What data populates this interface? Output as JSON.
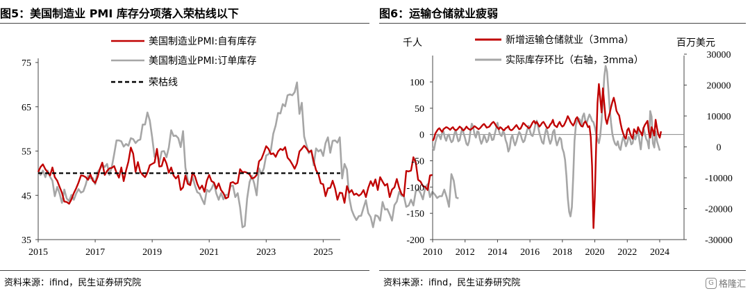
{
  "colors": {
    "red": "#c00000",
    "gray": "#a6a6a6",
    "black": "#000000"
  },
  "watermark": {
    "text": "格隆汇",
    "icon": "glh-logo-icon"
  },
  "left": {
    "title": "图5：美国制造业 PMI 库存分项落入荣枯线以下",
    "source": "资料来源：ifind，民生证券研究院",
    "chart_data": {
      "type": "line",
      "x_ticks": [
        "2015",
        "2017",
        "2019",
        "2021",
        "2023",
        "2025"
      ],
      "y_ticks": [
        "75",
        "65",
        "55",
        "45",
        "35"
      ],
      "ylim": [
        35,
        75
      ],
      "xlim": [
        2015.0,
        2025.6
      ],
      "threshold": {
        "name": "荣枯线",
        "value": 50,
        "style": "dashed"
      },
      "series": [
        {
          "name": "美国制造业PMI:自有库存",
          "color": "#c00000",
          "x_start": 2015.0,
          "step": 0.08333,
          "values": [
            50.3,
            51.4,
            52,
            50.9,
            50.2,
            49.5,
            51.3,
            49.1,
            48.3,
            46.9,
            45.6,
            43.6,
            43.5,
            43.1,
            44.1,
            45.5,
            46.6,
            47.9,
            49.5,
            49.4,
            49.1,
            48.5,
            49.7,
            48.3,
            47.8,
            49.1,
            51,
            52.4,
            49.6,
            50.5,
            51.1,
            51.2,
            51.6,
            50.1,
            49,
            51.3,
            48.2,
            50.6,
            52.6,
            55.8,
            54.4,
            50.3,
            52.5,
            50.3,
            49.6,
            49.1,
            50.1,
            51.8,
            52.1,
            52.4,
            55.5,
            51.5,
            51.6,
            53.5,
            52.2,
            50.1,
            51.3,
            49.5,
            48.8,
            49.5,
            46.2,
            46.8,
            49.5,
            47.6,
            47.3,
            50.1,
            49.3,
            47.6,
            46.4,
            47.2,
            45.8,
            48.3,
            49.6,
            48.2,
            47.9,
            46.5,
            47.7,
            46.2,
            45.5,
            44.3,
            44.6,
            47.8,
            48,
            47.6,
            47.8,
            50.9,
            50.2,
            50.3,
            50.1,
            49.7,
            48.8,
            49,
            49.6,
            52.7,
            53.2,
            54.6,
            56.1,
            55.5,
            54.3,
            54.5,
            53.7,
            54.9,
            55.5,
            55.2,
            55.9,
            53.5,
            52.9,
            52,
            51,
            52.2,
            54.9,
            55.5,
            56.2,
            55.6,
            54.8,
            55.1,
            52.7,
            50.7,
            49.8,
            47.7,
            47.5,
            44.8,
            46.6,
            46.7,
            48.3,
            46.6,
            44,
            45.6,
            45.5,
            43.3,
            47.1,
            45.6,
            46.2,
            45.1,
            45.4,
            44.9,
            45.3,
            46.2,
            44.6,
            46.7,
            48.2,
            47.1,
            48.6,
            46.2,
            49.1,
            48.1,
            47.2,
            47.6,
            44.6,
            46.3,
            46.8,
            48.7,
            46.7,
            45.3,
            44.8,
            50.5,
            50.4,
            50.6,
            53.6,
            52.4,
            48.5,
            48.1,
            47.1,
            46.9,
            46.2,
            49.5,
            49.6
          ]
        },
        {
          "name": "美国制造业PMI:订单库存",
          "color": "#a6a6a6",
          "x_start": 2015.0,
          "step": 0.08333,
          "values": [
            50.9,
            49.6,
            50.6,
            49.1,
            50.6,
            49.2,
            48.3,
            44.8,
            46.9,
            45.4,
            43.3,
            46.3,
            44.3,
            43.7,
            45.1,
            44,
            45.4,
            46.4,
            45.6,
            45.9,
            47.4,
            49.4,
            48.8,
            48.9,
            47.5,
            50.3,
            50.9,
            51.9,
            51.4,
            52.1,
            49.6,
            51.4,
            54.3,
            57.4,
            57.4,
            57.2,
            56,
            56.6,
            56.2,
            57.9,
            57.7,
            56.8,
            57.4,
            57.6,
            61,
            61,
            63.7,
            61.9,
            58.1,
            53.7,
            54.8,
            52.3,
            54.9,
            55,
            53.6,
            55.8,
            59.7,
            58.4,
            58.5,
            57.9,
            55.9,
            59.5,
            51.3,
            48.4,
            47.3,
            49.2,
            47.2,
            45.7,
            45.4,
            44.1,
            43,
            46.3,
            45.8,
            46.5,
            47.8,
            45.4,
            44,
            45.5,
            44.1,
            45.1,
            45.1,
            47.1,
            47.2,
            44.6,
            45.5,
            42.3,
            37.8,
            38.1,
            44.3,
            48,
            49.4,
            47.6,
            45,
            51.1,
            49.8,
            51.1,
            54,
            54.3,
            55.2,
            58.9,
            60.8,
            63.6,
            63.5,
            65.6,
            65.1,
            67.6,
            67.8,
            67.6,
            68.3,
            70.5,
            63.4,
            65.9,
            58.3,
            56.3,
            54.5,
            55.2,
            51.8,
            55.6,
            54.9,
            55.3,
            53.9,
            56.8,
            58.1,
            54.6,
            57.3,
            57.4,
            56.9,
            58.1,
            48.8,
            52.1,
            50.8,
            44.4,
            41.7,
            40.4,
            39.4,
            40.3,
            40.4,
            42.2,
            43.9,
            41,
            40.1,
            37.8,
            40.5,
            40.3,
            39.3,
            43.5,
            41.8,
            41.9,
            40.7,
            39.3,
            42.8,
            43.6,
            45.8,
            44.9,
            44.8,
            42.4,
            42.7,
            44,
            42.7,
            45.9,
            46.4,
            45.5,
            44.1,
            46.8,
            47.5,
            44.6,
            45.8,
            45.2,
            44.4,
            44.8,
            44.8,
            46.3,
            44.6,
            42.4,
            49.8,
            48.3,
            44.5,
            44.3
          ]
        }
      ]
    },
    "legend": [
      {
        "label": "美国制造业PMI:自有库存",
        "color": "#c00000",
        "style": "solid"
      },
      {
        "label": "美国制造业PMI:订单库存",
        "color": "#a6a6a6",
        "style": "solid"
      },
      {
        "label": "荣枯线",
        "color": "#000000",
        "style": "dashed"
      }
    ]
  },
  "right": {
    "title": "图6：运输仓储就业疲弱",
    "source": "资料来源：ifind，民生证券研究院",
    "chart_data": {
      "type": "line",
      "left_unit": "千人",
      "right_unit": "百万美元",
      "x_ticks": [
        "2010",
        "2012",
        "2014",
        "2016",
        "2018",
        "2020",
        "2022",
        "2024"
      ],
      "xlim": [
        2010.0,
        2025.5
      ],
      "y_ticks_left": [
        "100",
        "50",
        "0",
        "-50",
        "-100",
        "-150",
        "-200"
      ],
      "ylim_left": [
        -200,
        100
      ],
      "y_ticks_right": [
        "30000",
        "20000",
        "10000",
        "0",
        "-10000",
        "-20000",
        "-30000"
      ],
      "ylim_right": [
        -30000,
        30000
      ],
      "series": [
        {
          "name": "新增运输仓储就业（3mma）",
          "color": "#c00000",
          "axis": "left",
          "x_start": 2010.0,
          "step": 0.08333,
          "values": [
            -12,
            -8,
            2,
            6,
            10,
            12,
            8,
            5,
            10,
            12,
            14,
            13,
            11,
            9,
            12,
            14,
            10,
            8,
            9,
            12,
            15,
            13,
            9,
            8,
            11,
            15,
            12,
            10,
            9,
            11,
            13,
            16,
            14,
            12,
            10,
            12,
            15,
            18,
            20,
            17,
            13,
            14,
            15,
            19,
            22,
            24,
            21,
            16,
            13,
            10,
            14,
            12,
            9,
            8,
            12,
            13,
            16,
            10,
            8,
            9,
            12,
            15,
            18,
            14,
            10,
            11,
            16,
            22,
            20,
            17,
            15,
            12,
            13,
            18,
            23,
            26,
            21,
            24,
            20,
            15,
            18,
            22,
            24,
            20,
            15,
            12,
            14,
            19,
            22,
            28,
            18,
            16,
            14,
            20,
            24,
            18,
            15,
            17,
            22,
            28,
            35,
            30,
            24,
            20,
            17,
            22,
            30,
            33,
            26,
            20,
            16,
            15,
            22,
            25,
            20,
            14,
            16,
            -5,
            -60,
            -178,
            -120,
            -20,
            60,
            96,
            70,
            42,
            88,
            58,
            30,
            20,
            32,
            40,
            52,
            62,
            70,
            60,
            45,
            40,
            36,
            22,
            10,
            2,
            -5,
            -8,
            8,
            12,
            4,
            -4,
            -8,
            10,
            6,
            2,
            14,
            8,
            4,
            -2,
            12,
            18,
            22,
            26,
            4,
            -6,
            14,
            8,
            -2,
            28,
            12,
            0,
            -6,
            6
          ]
        },
        {
          "name": "实际库存环比（右轴，3mma）",
          "color": "#a6a6a6",
          "axis": "right",
          "x_start": 2010.0,
          "step": 0.08333,
          "values": [
            0,
            -1000,
            1500,
            3000,
            4000,
            3500,
            2500,
            4500,
            5000,
            3000,
            2000,
            3500,
            4000,
            2500,
            1500,
            2000,
            4000,
            5500,
            3500,
            1800,
            2200,
            4500,
            6000,
            4200,
            2800,
            1000,
            500,
            1800,
            5200,
            7500,
            6500,
            4000,
            3000,
            5000,
            4800,
            2500,
            1000,
            2000,
            3800,
            2800,
            1500,
            2200,
            4500,
            3800,
            2200,
            2400,
            4200,
            6000,
            7800,
            5200,
            4000,
            3500,
            5000,
            4500,
            2200,
            1000,
            -1500,
            -500,
            2800,
            3800,
            1800,
            500,
            1800,
            3500,
            4800,
            4200,
            2600,
            1500,
            2000,
            3800,
            5500,
            6800,
            5200,
            3800,
            3500,
            5000,
            7200,
            8500,
            6600,
            4500,
            3000,
            1500,
            1000,
            3800,
            5800,
            4900,
            2500,
            1000,
            2200,
            4800,
            5500,
            2400,
            500,
            1800,
            3000,
            2500,
            -500,
            -1800,
            -4200,
            -9500,
            -16500,
            -21000,
            -22500,
            -19500,
            -9800,
            2000,
            7000,
            8500,
            9200,
            8800,
            6800,
            9800,
            10800,
            8500,
            7800,
            9200,
            10500,
            9600,
            8400,
            8000,
            6400,
            4200,
            2500,
            1200,
            3500,
            8600,
            15200,
            22800,
            26200,
            24400,
            18800,
            12500,
            7800,
            4200,
            2200,
            1000,
            500,
            1800,
            -200,
            -1000,
            1500,
            3200,
            2000,
            200,
            1300,
            3200,
            2600,
            800,
            1200,
            3800,
            2400,
            3800,
            5600,
            1900,
            -800,
            3400,
            6200,
            4400,
            2600,
            1800,
            -500,
            11600,
            9800,
            1200,
            -200,
            5000,
            1800,
            400,
            -1200
          ]
        }
      ]
    },
    "legend": [
      {
        "label": "新增运输仓储就业（3mma）",
        "color": "#c00000"
      },
      {
        "label": "实际库存环比（右轴，3mma）",
        "color": "#a6a6a6"
      }
    ]
  }
}
